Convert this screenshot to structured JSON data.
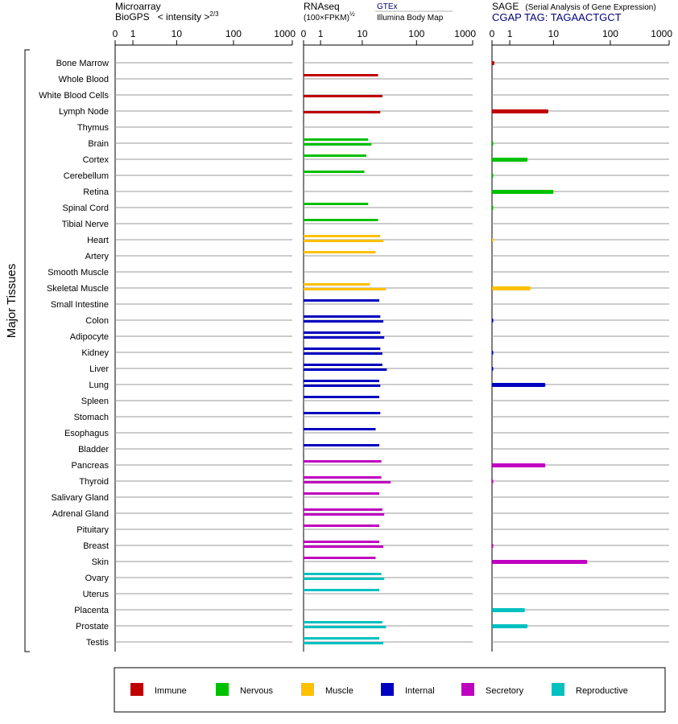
{
  "chart_data": {
    "type": "bar",
    "orientation": "horizontal",
    "ylabel": "Major Tissues",
    "categories": [
      "Bone Marrow",
      "Whole Blood",
      "White Blood Cells",
      "Lymph Node",
      "Thymus",
      "Brain",
      "Cortex",
      "Cerebellum",
      "Retina",
      "Spinal Cord",
      "Tibial Nerve",
      "Heart",
      "Artery",
      "Smooth Muscle",
      "Skeletal Muscle",
      "Small Intestine",
      "Colon",
      "Adipocyte",
      "Kidney",
      "Liver",
      "Lung",
      "Spleen",
      "Stomach",
      "Esophagus",
      "Bladder",
      "Pancreas",
      "Thyroid",
      "Salivary Gland",
      "Adrenal Gland",
      "Pituitary",
      "Breast",
      "Skin",
      "Ovary",
      "Uterus",
      "Placenta",
      "Prostate",
      "Testis"
    ],
    "tissue_group": [
      "Immune",
      "Immune",
      "Immune",
      "Immune",
      "Immune",
      "Nervous",
      "Nervous",
      "Nervous",
      "Nervous",
      "Nervous",
      "Nervous",
      "Muscle",
      "Muscle",
      "Muscle",
      "Muscle",
      "Internal",
      "Internal",
      "Internal",
      "Internal",
      "Internal",
      "Internal",
      "Internal",
      "Internal",
      "Internal",
      "Internal",
      "Secretory",
      "Secretory",
      "Secretory",
      "Secretory",
      "Secretory",
      "Secretory",
      "Secretory",
      "Reproductive",
      "Reproductive",
      "Reproductive",
      "Reproductive",
      "Reproductive"
    ],
    "legend": {
      "placement": "bottom",
      "items": [
        {
          "name": "Immune",
          "color": "#c00000"
        },
        {
          "name": "Nervous",
          "color": "#00c000"
        },
        {
          "name": "Muscle",
          "color": "#ffc000"
        },
        {
          "name": "Internal",
          "color": "#0000c0"
        },
        {
          "name": "Secretory",
          "color": "#c000c0"
        },
        {
          "name": "Reproductive",
          "color": "#00c0c0"
        }
      ]
    },
    "panels": [
      {
        "title_line1": "Microarray",
        "title_line2": "BioGPS",
        "scale_label": "< intensity >",
        "scale_exponent": "2/3",
        "ticks": [
          "0",
          "1",
          "10",
          "100",
          "1000"
        ],
        "tick_values": [
          0,
          1,
          10,
          100,
          1000
        ],
        "xlim": [
          0,
          1000
        ],
        "values": []
      },
      {
        "title_line1": "RNAseq",
        "scale_label": "(100×FPKM)",
        "scale_exponent": "½",
        "source_label1": "GTEx",
        "source_label2": "Illumina Body Map",
        "source_color1": "#000080",
        "ticks": [
          "0",
          "1",
          "10",
          "100",
          "1000"
        ],
        "tick_values": [
          0,
          1,
          10,
          100,
          1000
        ],
        "xlim": [
          0,
          1000
        ],
        "values": [
          [
            null,
            null
          ],
          [
            20,
            null
          ],
          [
            null,
            24
          ],
          [
            null,
            22
          ],
          [
            null,
            null
          ],
          [
            13,
            15
          ],
          [
            12,
            null
          ],
          [
            11,
            null
          ],
          [
            null,
            null
          ],
          [
            13,
            null
          ],
          [
            20,
            null
          ],
          [
            22,
            25
          ],
          [
            18,
            null
          ],
          [
            null,
            null
          ],
          [
            14,
            28
          ],
          [
            21,
            null
          ],
          [
            22,
            25
          ],
          [
            22,
            26
          ],
          [
            22,
            24
          ],
          [
            24,
            29
          ],
          [
            21,
            22
          ],
          [
            21,
            null
          ],
          [
            22,
            null
          ],
          [
            18,
            null
          ],
          [
            21,
            null
          ],
          [
            23,
            null
          ],
          [
            23,
            34
          ],
          [
            21,
            null
          ],
          [
            24,
            26
          ],
          [
            21,
            null
          ],
          [
            21,
            25
          ],
          [
            18,
            null
          ],
          [
            23,
            26
          ],
          [
            21,
            null
          ],
          [
            null,
            null
          ],
          [
            24,
            28
          ],
          [
            21,
            25
          ]
        ]
      },
      {
        "title_line1": "SAGE",
        "title_extra": "(Serial Analysis of Gene Expression)",
        "subtitle": "CGAP TAG: TAGAACTGCT",
        "subtitle_color": "#000080",
        "ticks": [
          "0",
          "1",
          "10",
          "100",
          "1000"
        ],
        "tick_values": [
          0,
          1,
          10,
          100,
          1000
        ],
        "xlim": [
          0,
          1000
        ],
        "values": [
          0.1,
          null,
          null,
          8,
          null,
          0.05,
          3,
          0.05,
          10,
          0.05,
          null,
          0.05,
          null,
          null,
          3.5,
          null,
          0.05,
          null,
          0.05,
          0.05,
          7,
          null,
          null,
          null,
          null,
          7,
          0.05,
          null,
          null,
          null,
          0.05,
          40,
          null,
          null,
          2.6,
          3,
          null
        ]
      }
    ]
  }
}
